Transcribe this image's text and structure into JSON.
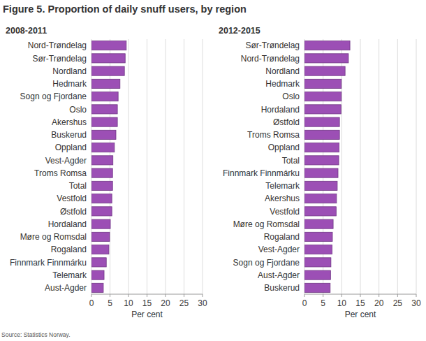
{
  "title": "Figure 5. Proportion of daily snuff users, by region",
  "source": "Source: Statistics Norway.",
  "chart_data": [
    {
      "type": "bar",
      "title": "2008-2011",
      "orientation": "horizontal",
      "categories": [
        "Nord-Trøndelag",
        "Sør-Trøndelag",
        "Nordland",
        "Hedmark",
        "Sogn og Fjordane",
        "Oslo",
        "Akershus",
        "Buskerud",
        "Oppland",
        "Vest-Agder",
        "Troms Romsa",
        "Total",
        "Vestfold",
        "Østfold",
        "Hordaland",
        "Møre og Romsdal",
        "Rogaland",
        "Finnmark Finnmárku",
        "Telemark",
        "Aust-Agder"
      ],
      "values": [
        9.4,
        9.1,
        8.9,
        7.7,
        7.2,
        7.0,
        7.0,
        6.6,
        6.2,
        5.8,
        5.7,
        5.7,
        5.5,
        5.5,
        5.1,
        4.9,
        4.7,
        4.0,
        3.4,
        3.2
      ],
      "color": "#9c4fb5",
      "xlim": [
        0,
        30
      ],
      "xticks": [
        0,
        5,
        10,
        15,
        20,
        25,
        30
      ],
      "xlabel": "Per cent",
      "grid": true
    },
    {
      "type": "bar",
      "title": "2012-2015",
      "orientation": "horizontal",
      "categories": [
        "Sør-Trøndelag",
        "Nord-Trøndelag",
        "Nordland",
        "Hedmark",
        "Oslo",
        "Hordaland",
        "Østfold",
        "Troms Romsa",
        "Oppland",
        "Total",
        "Finnmark Finnmárku",
        "Telemark",
        "Akershus",
        "Vestfold",
        "Møre og Romsdal",
        "Rogaland",
        "Vest-Agder",
        "Sogn og Fjordane",
        "Aust-Agder",
        "Buskerud"
      ],
      "values": [
        12.2,
        11.8,
        10.9,
        9.9,
        9.9,
        9.8,
        9.4,
        9.4,
        9.3,
        9.2,
        9.0,
        8.8,
        8.6,
        8.5,
        7.7,
        7.5,
        7.4,
        7.1,
        7.0,
        6.9
      ],
      "color": "#9c4fb5",
      "xlim": [
        0,
        30
      ],
      "xticks": [
        0,
        5,
        10,
        15,
        20,
        25,
        30
      ],
      "xlabel": "Per cent",
      "grid": true
    }
  ]
}
